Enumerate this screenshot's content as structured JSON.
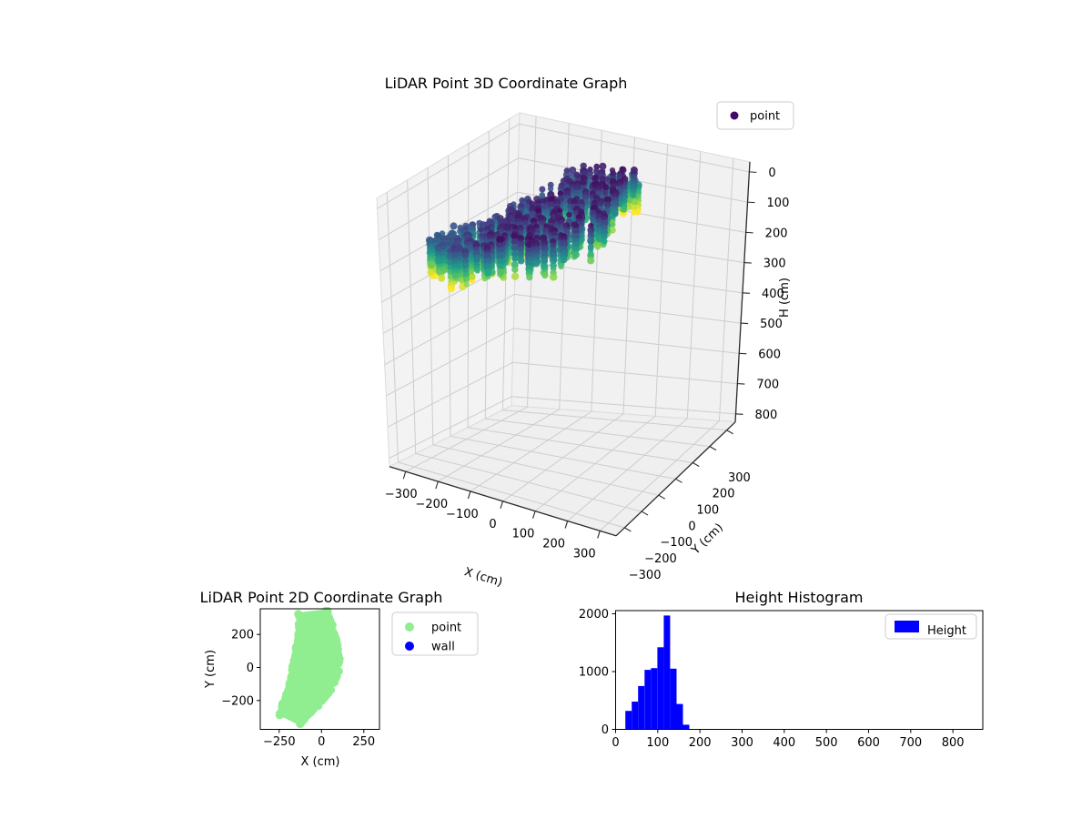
{
  "figure": {
    "background": "#ffffff"
  },
  "plot3d": {
    "title": "LiDAR Point 3D Coordinate Graph",
    "xlabel": "X (cm)",
    "ylabel": "Y (cm)",
    "zlabel": "H (cm)",
    "xticks": [
      -300,
      -200,
      -100,
      0,
      100,
      200,
      300
    ],
    "yticks": [
      -300,
      -200,
      -100,
      0,
      100,
      200,
      300
    ],
    "zticks": [
      0,
      100,
      200,
      300,
      400,
      500,
      600,
      700,
      800
    ],
    "legend": {
      "items": [
        {
          "label": "point",
          "color": "#440a68",
          "marker": "circle"
        }
      ]
    }
  },
  "plot2d": {
    "title": "LiDAR Point 2D Coordinate Graph",
    "xlabel": "X (cm)",
    "ylabel": "Y (cm)",
    "xticks": [
      -250,
      0,
      250
    ],
    "yticks": [
      200,
      0,
      -200
    ],
    "legend": {
      "items": [
        {
          "label": "point",
          "color": "#90ee90",
          "marker": "circle"
        },
        {
          "label": "wall",
          "color": "#0000ff",
          "marker": "circle"
        }
      ]
    }
  },
  "hist": {
    "title": "Height Histogram",
    "xticks": [
      0,
      100,
      200,
      300,
      400,
      500,
      600,
      700,
      800
    ],
    "yticks": [
      0,
      1000,
      2000
    ],
    "bar_color": "#0000ff",
    "legend": {
      "items": [
        {
          "label": "Height",
          "color": "#0000ff",
          "marker": "patch"
        }
      ]
    }
  },
  "chart_data": [
    {
      "type": "scatter",
      "name": "LiDAR Point 3D Coordinate Graph",
      "series": [
        {
          "name": "point",
          "colormap": "viridis (colored by height H)"
        }
      ],
      "xlabel": "X (cm)",
      "ylabel": "Y (cm)",
      "zlabel": "H (cm)",
      "xlim": [
        -350,
        350
      ],
      "ylim": [
        -350,
        350
      ],
      "zlim": [
        0,
        880
      ],
      "z_axis_inverted": true,
      "grid": true,
      "legend_position": "upper right",
      "description": "Dense LiDAR point cloud; same crescent footprint as the 2D plot, heights ~25-180 cm, drawn as vertical columns of dots; low heights dark purple, high heights yellow-green.",
      "height_range_cm": [
        25,
        180
      ]
    },
    {
      "type": "scatter",
      "name": "LiDAR Point 2D Coordinate Graph",
      "series": [
        {
          "name": "point",
          "color": "#90ee90",
          "visible_points": "dense crescent-shaped blob"
        },
        {
          "name": "wall",
          "color": "#0000ff",
          "visible_points": "none visible"
        }
      ],
      "xlabel": "X (cm)",
      "ylabel": "Y (cm)",
      "xlim": [
        -362,
        342
      ],
      "ylim": [
        -372,
        355
      ],
      "legend_position": "outside upper right",
      "crescent_spine_x_y_halfwidth": [
        [
          -58,
          350,
          80
        ],
        [
          -30,
          220,
          100
        ],
        [
          -25,
          120,
          120
        ],
        [
          -28,
          20,
          133
        ],
        [
          -55,
          -80,
          125
        ],
        [
          -95,
          -160,
          105
        ],
        [
          -150,
          -240,
          85
        ],
        [
          -190,
          -320,
          62
        ]
      ]
    },
    {
      "type": "bar",
      "name": "Height Histogram",
      "series_label": "Height",
      "bin_start": 23,
      "bin_width": 15.2,
      "counts": [
        320,
        480,
        750,
        1030,
        1060,
        1420,
        1970,
        1050,
        440,
        80
      ],
      "xlabel": "",
      "ylabel": "",
      "xlim": [
        0,
        872
      ],
      "ylim": [
        0,
        2055
      ],
      "xticks": [
        0,
        100,
        200,
        300,
        400,
        500,
        600,
        700,
        800
      ],
      "yticks": [
        0,
        1000,
        2000
      ],
      "bar_color": "#0000ff",
      "legend_position": "upper right"
    }
  ]
}
